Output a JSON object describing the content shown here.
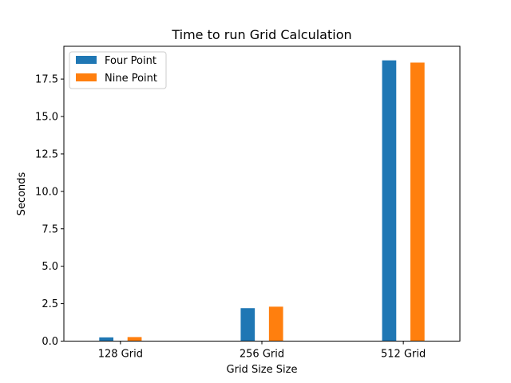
{
  "chart_data": {
    "type": "bar",
    "title": "Time to run Grid Calculation",
    "xlabel": "Grid Size Size",
    "ylabel": "Seconds",
    "categories": [
      "128 Grid",
      "256 Grid",
      "512 Grid"
    ],
    "series": [
      {
        "name": "Four Point",
        "color": "#1f77b4",
        "values": [
          0.25,
          2.2,
          18.75
        ]
      },
      {
        "name": "Nine Point",
        "color": "#ff7f0e",
        "values": [
          0.27,
          2.3,
          18.6
        ]
      }
    ],
    "ylim": [
      0,
      19.69
    ],
    "yticks": [
      "0.0",
      "2.5",
      "5.0",
      "7.5",
      "10.0",
      "12.5",
      "15.0",
      "17.5"
    ],
    "grid": false,
    "legend": "top-left"
  }
}
